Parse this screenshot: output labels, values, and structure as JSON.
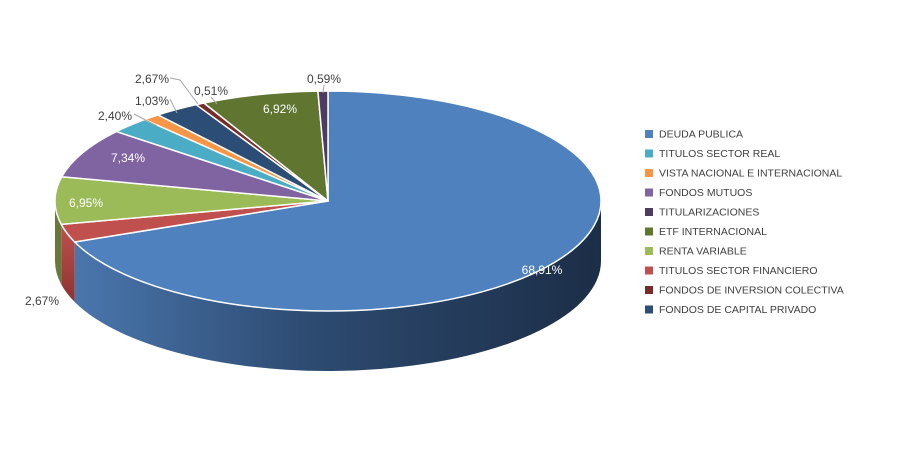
{
  "chart_data": {
    "type": "pie",
    "style": "3d",
    "title": "",
    "legend_position": "right",
    "slices": [
      {
        "name": "DEUDA PUBLICA",
        "value": 68.91,
        "label": "68,91%",
        "color": "#4e81bd"
      },
      {
        "name": "TITULOS SECTOR FINANCIERO",
        "value": 2.67,
        "label": "2,67%",
        "color": "#c0504d"
      },
      {
        "name": "RENTA VARIABLE",
        "value": 6.95,
        "label": "6,95%",
        "color": "#9bbb59"
      },
      {
        "name": "FONDOS MUTUOS",
        "value": 7.34,
        "label": "7,34%",
        "color": "#8064a2"
      },
      {
        "name": "TITULOS SECTOR REAL",
        "value": 2.4,
        "label": "2,40%",
        "color": "#4bacc6"
      },
      {
        "name": "VISTA NACIONAL E INTERNACIONAL",
        "value": 1.03,
        "label": "1,03%",
        "color": "#f79646"
      },
      {
        "name": "FONDOS DE CAPITAL PRIVADO",
        "value": 2.67,
        "label": "2,67%",
        "color": "#2c4d75"
      },
      {
        "name": "FONDOS DE INVERSION COLECTIVA",
        "value": 0.51,
        "label": "0,51%",
        "color": "#772c2a"
      },
      {
        "name": "ETF INTERNACIONAL",
        "value": 6.92,
        "label": "6,92%",
        "color": "#5f7530"
      },
      {
        "name": "TITULARIZACIONES",
        "value": 0.59,
        "label": "0,59%",
        "color": "#4d3b62"
      }
    ],
    "legend": [
      {
        "name": "DEUDA PUBLICA",
        "color": "#4e81bd"
      },
      {
        "name": "TITULOS SECTOR REAL",
        "color": "#4bacc6"
      },
      {
        "name": "VISTA NACIONAL E INTERNACIONAL",
        "color": "#f79646"
      },
      {
        "name": "FONDOS MUTUOS",
        "color": "#8064a2"
      },
      {
        "name": "TITULARIZACIONES",
        "color": "#4d3b62"
      },
      {
        "name": "ETF INTERNACIONAL",
        "color": "#5f7530"
      },
      {
        "name": "RENTA VARIABLE",
        "color": "#9bbb59"
      },
      {
        "name": "TITULOS SECTOR FINANCIERO",
        "color": "#c0504d"
      },
      {
        "name": "FONDOS DE INVERSION COLECTIVA",
        "color": "#772c2a"
      },
      {
        "name": "FONDOS DE CAPITAL PRIVADO",
        "color": "#2c4d75"
      }
    ]
  }
}
